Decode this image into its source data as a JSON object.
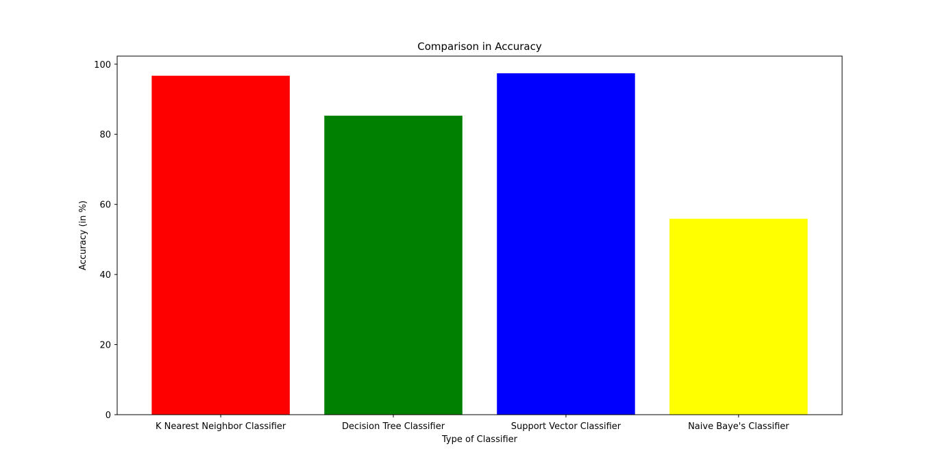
{
  "chart_data": {
    "type": "bar",
    "title": "Comparison in Accuracy",
    "xlabel": "Type of Classifier",
    "ylabel": "Accuracy (in %)",
    "categories": [
      "K Nearest Neighbor Classifier",
      "Decision Tree Classifier",
      "Support Vector Classifier",
      "Naive Baye's Classifier"
    ],
    "values": [
      96.7,
      85.3,
      97.4,
      55.9
    ],
    "colors": [
      "#ff0000",
      "#008000",
      "#0000ff",
      "#ffff00"
    ],
    "ylim": [
      0,
      102.3
    ],
    "yticks": [
      0,
      20,
      40,
      60,
      80,
      100
    ],
    "grid": false,
    "legend": "none"
  }
}
